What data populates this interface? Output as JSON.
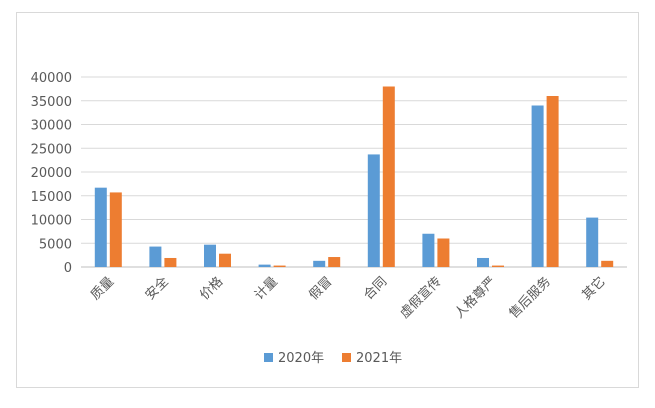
{
  "chart_data": {
    "type": "bar",
    "title": "",
    "xlabel": "",
    "ylabel": "",
    "ylim": [
      0,
      40000
    ],
    "yticks": [
      0,
      5000,
      10000,
      15000,
      20000,
      25000,
      30000,
      35000,
      40000
    ],
    "grid": true,
    "legend": "bottom",
    "categories": [
      "质量",
      "安全",
      "价格",
      "计量",
      "假冒",
      "合同",
      "虚假宣传",
      "人格尊严",
      "售后服务",
      "其它"
    ],
    "series": [
      {
        "name": "2020年",
        "color": "#5B9BD5",
        "values": [
          16700,
          4300,
          4700,
          500,
          1300,
          23700,
          7000,
          1900,
          34000,
          10400
        ]
      },
      {
        "name": "2021年",
        "color": "#ED7D31",
        "values": [
          15700,
          1900,
          2800,
          300,
          2100,
          38000,
          6000,
          300,
          36000,
          1300
        ]
      }
    ]
  }
}
